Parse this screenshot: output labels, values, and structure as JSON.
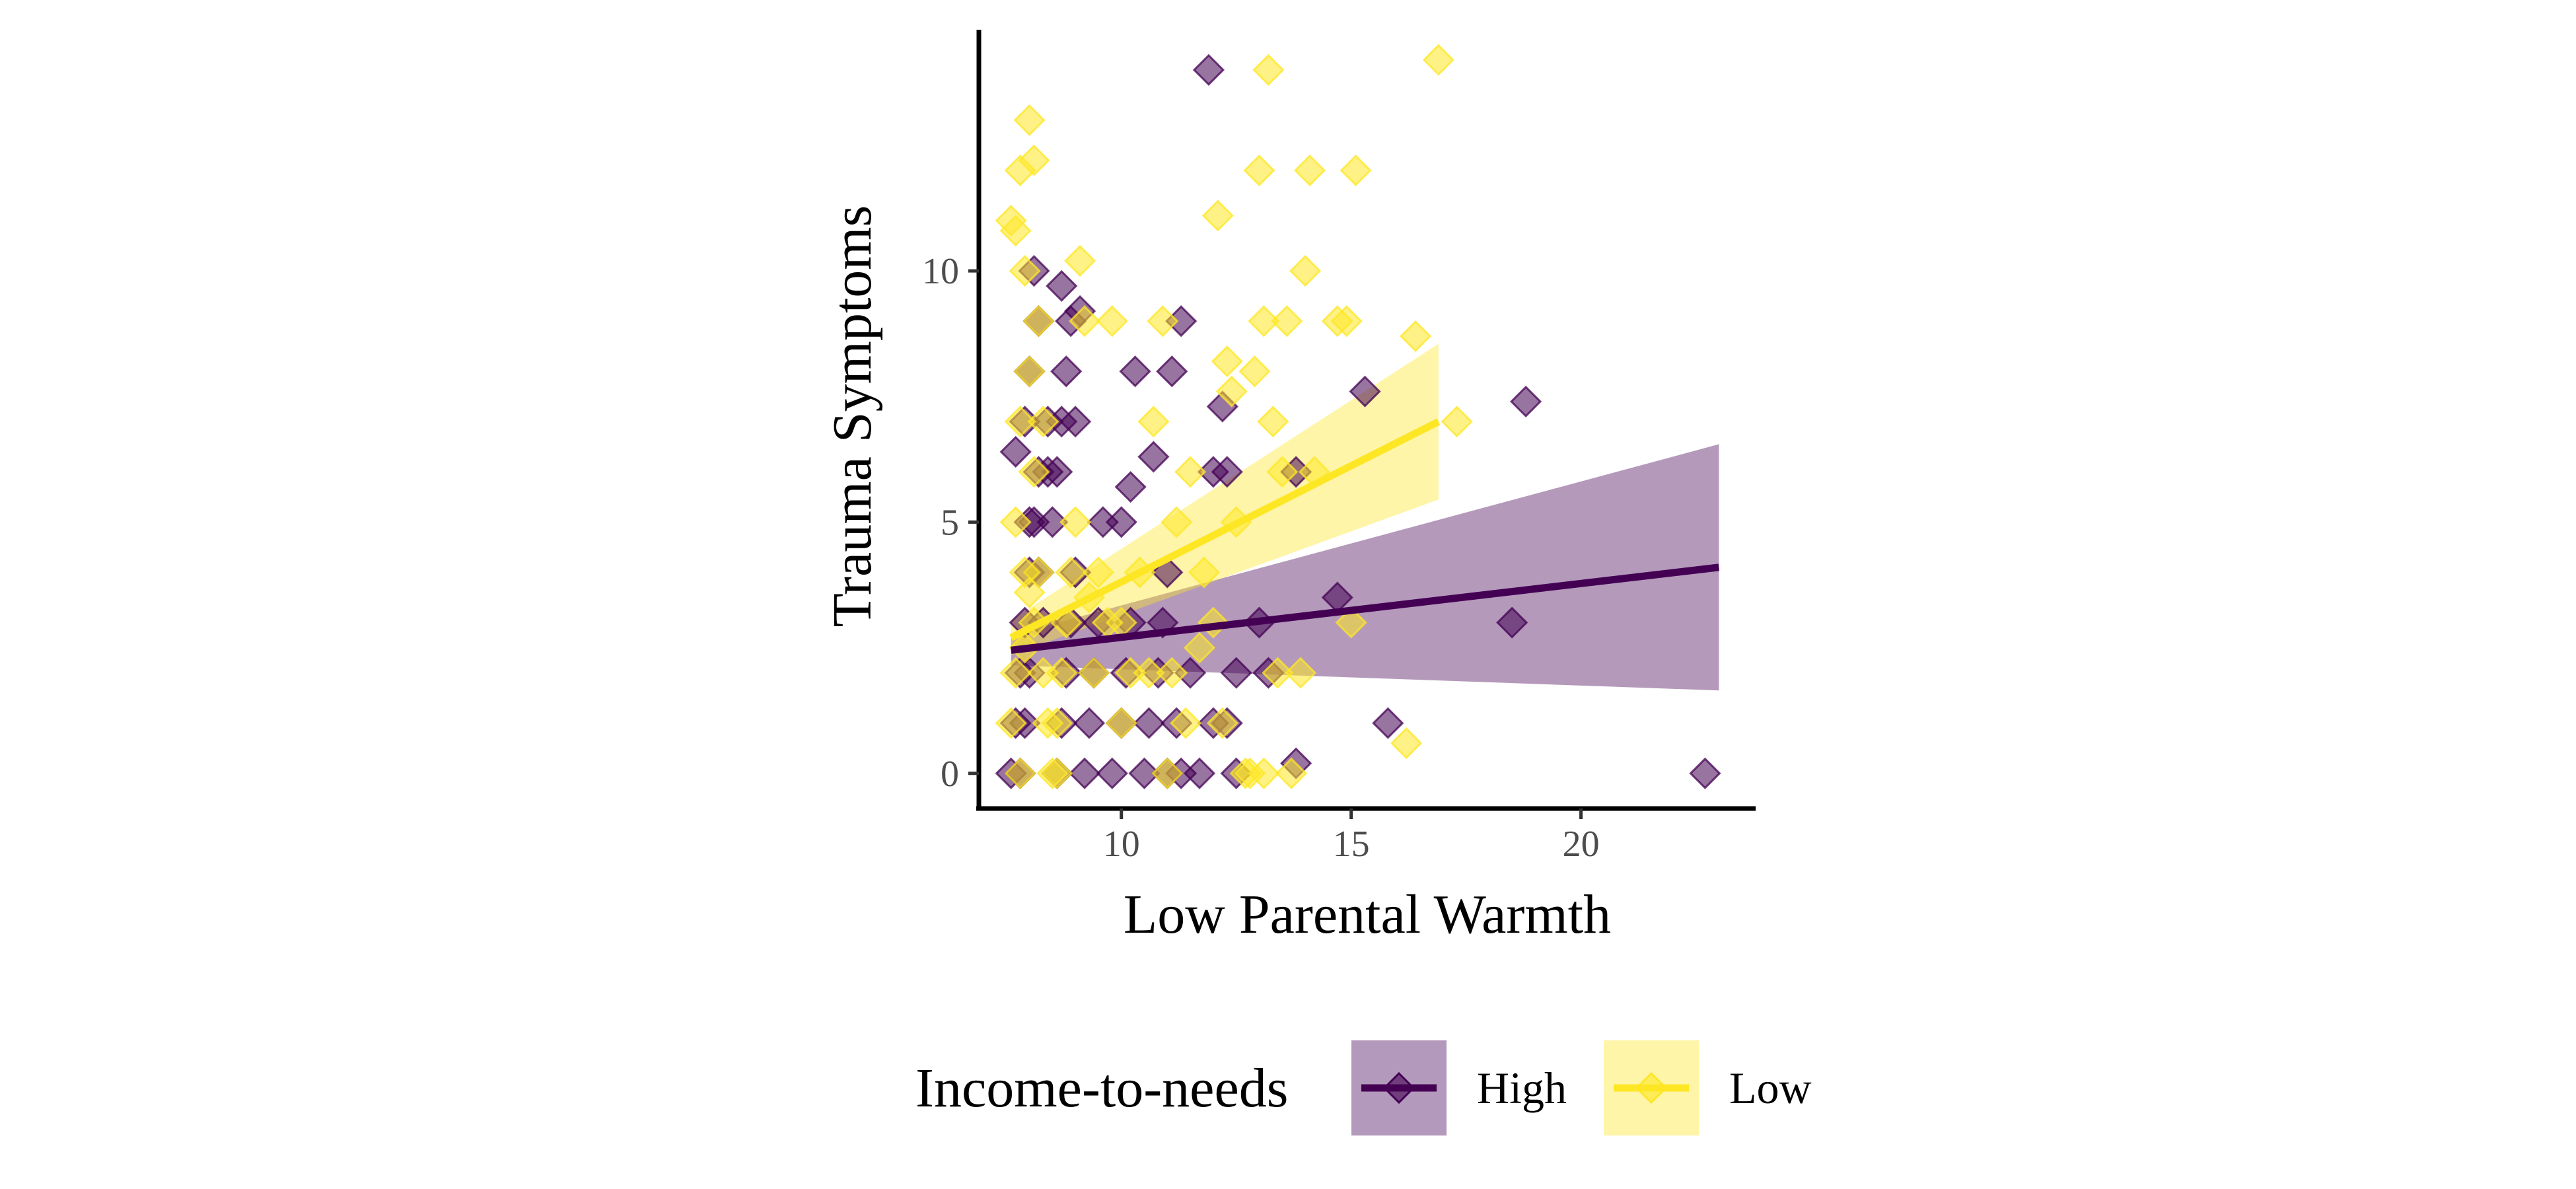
{
  "chart_data": {
    "type": "scatter",
    "title": "",
    "xlabel": "Low Parental Warmth",
    "ylabel": "Trauma Symptoms",
    "xlim": [
      6.9,
      23.8
    ],
    "ylim": [
      -0.7,
      14.8
    ],
    "xticks": [
      10,
      15,
      20
    ],
    "yticks": [
      0,
      5,
      10
    ],
    "grid": false,
    "legend": {
      "title": "Income-to-needs",
      "position": "bottom",
      "entries": [
        "High",
        "Low"
      ]
    },
    "series": [
      {
        "name": "High",
        "color": "#440154",
        "band_color": "#b399bb",
        "marker": "diamond",
        "fit": {
          "x": [
            7.6,
            23.0
          ],
          "y": [
            2.45,
            4.1
          ],
          "lower": [
            2.15,
            1.65
          ],
          "upper": [
            2.75,
            6.55
          ]
        },
        "points": [
          [
            7.6,
            0
          ],
          [
            7.7,
            1
          ],
          [
            7.8,
            2
          ],
          [
            7.9,
            3
          ],
          [
            8.0,
            4
          ],
          [
            8.1,
            5
          ],
          [
            8.2,
            6
          ],
          [
            7.8,
            0
          ],
          [
            7.9,
            1
          ],
          [
            8.0,
            2
          ],
          [
            8.3,
            3
          ],
          [
            8.4,
            7
          ],
          [
            8.0,
            8
          ],
          [
            8.2,
            9
          ],
          [
            8.1,
            10
          ],
          [
            8.6,
            0
          ],
          [
            8.7,
            1
          ],
          [
            8.8,
            2
          ],
          [
            8.9,
            3
          ],
          [
            9.0,
            4
          ],
          [
            8.5,
            5
          ],
          [
            8.6,
            6
          ],
          [
            8.7,
            7
          ],
          [
            8.8,
            8
          ],
          [
            8.9,
            9
          ],
          [
            9.2,
            0
          ],
          [
            9.3,
            1
          ],
          [
            9.4,
            2
          ],
          [
            9.5,
            3
          ],
          [
            9.6,
            5
          ],
          [
            9.8,
            0
          ],
          [
            10.0,
            1
          ],
          [
            10.1,
            2
          ],
          [
            10.2,
            3
          ],
          [
            10.0,
            5
          ],
          [
            10.3,
            8
          ],
          [
            10.5,
            0
          ],
          [
            10.6,
            1
          ],
          [
            10.8,
            2
          ],
          [
            10.9,
            3
          ],
          [
            10.7,
            6.3
          ],
          [
            11.0,
            4
          ],
          [
            11.0,
            0
          ],
          [
            11.2,
            1
          ],
          [
            11.3,
            0
          ],
          [
            11.1,
            8
          ],
          [
            11.5,
            2
          ],
          [
            11.7,
            0
          ],
          [
            12.0,
            1
          ],
          [
            12.0,
            6
          ],
          [
            12.2,
            7.3
          ],
          [
            12.3,
            1
          ],
          [
            12.5,
            2
          ],
          [
            12.5,
            0
          ],
          [
            13.0,
            3
          ],
          [
            13.2,
            2
          ],
          [
            13.8,
            0.2
          ],
          [
            13.8,
            6
          ],
          [
            14.7,
            3.5
          ],
          [
            15.3,
            7.6
          ],
          [
            15.8,
            1
          ],
          [
            18.5,
            3
          ],
          [
            18.8,
            7.4
          ],
          [
            22.7,
            0
          ],
          [
            11.9,
            14
          ],
          [
            7.7,
            6.4
          ],
          [
            8.0,
            5
          ],
          [
            8.2,
            4
          ],
          [
            7.9,
            7
          ],
          [
            8.4,
            6
          ],
          [
            9.0,
            7
          ],
          [
            8.7,
            9.7
          ],
          [
            9.1,
            9.2
          ],
          [
            10.2,
            5.7
          ],
          [
            11.3,
            9.0
          ],
          [
            12.3,
            6.0
          ]
        ]
      },
      {
        "name": "Low",
        "color": "#fde725",
        "band_color": "#fef5a8",
        "marker": "diamond",
        "fit": {
          "x": [
            7.6,
            16.9
          ],
          "y": [
            2.7,
            7.0
          ],
          "lower": [
            2.35,
            5.45
          ],
          "upper": [
            3.05,
            8.55
          ]
        },
        "points": [
          [
            7.6,
            11
          ],
          [
            7.8,
            12
          ],
          [
            8.0,
            13
          ],
          [
            8.1,
            12.2
          ],
          [
            7.7,
            10.8
          ],
          [
            7.9,
            10
          ],
          [
            8.2,
            9
          ],
          [
            8.0,
            8
          ],
          [
            7.8,
            7
          ],
          [
            8.1,
            6
          ],
          [
            7.7,
            5
          ],
          [
            7.9,
            4
          ],
          [
            8.1,
            3
          ],
          [
            8.3,
            2
          ],
          [
            7.6,
            1
          ],
          [
            7.8,
            0
          ],
          [
            8.5,
            0
          ],
          [
            8.6,
            1
          ],
          [
            8.7,
            2
          ],
          [
            8.8,
            3
          ],
          [
            8.9,
            4
          ],
          [
            9.0,
            5
          ],
          [
            9.1,
            10.2
          ],
          [
            9.2,
            9
          ],
          [
            9.4,
            2
          ],
          [
            9.7,
            3
          ],
          [
            9.8,
            9
          ],
          [
            10.0,
            1
          ],
          [
            10.2,
            2
          ],
          [
            10.4,
            4
          ],
          [
            10.7,
            7
          ],
          [
            10.9,
            9
          ],
          [
            11.0,
            0
          ],
          [
            11.2,
            5
          ],
          [
            11.4,
            1
          ],
          [
            11.5,
            6
          ],
          [
            11.8,
            4
          ],
          [
            12.0,
            3
          ],
          [
            12.1,
            11.1
          ],
          [
            12.3,
            8.2
          ],
          [
            12.4,
            7.6
          ],
          [
            12.7,
            0
          ],
          [
            12.9,
            8.0
          ],
          [
            13.0,
            12
          ],
          [
            13.1,
            9
          ],
          [
            13.2,
            14
          ],
          [
            13.3,
            7
          ],
          [
            13.6,
            9
          ],
          [
            13.5,
            6
          ],
          [
            13.9,
            2
          ],
          [
            14.0,
            10
          ],
          [
            14.1,
            12
          ],
          [
            14.2,
            6
          ],
          [
            14.7,
            9
          ],
          [
            14.9,
            9
          ],
          [
            15.0,
            3
          ],
          [
            15.1,
            12
          ],
          [
            16.2,
            0.6
          ],
          [
            16.4,
            8.7
          ],
          [
            16.9,
            14.2
          ],
          [
            17.3,
            7
          ],
          [
            12.8,
            0
          ],
          [
            13.1,
            0
          ],
          [
            13.7,
            0
          ],
          [
            7.7,
            2
          ],
          [
            7.9,
            2.5
          ],
          [
            8.2,
            4
          ],
          [
            8.4,
            1
          ],
          [
            8.6,
            0
          ],
          [
            9.3,
            3.5
          ],
          [
            9.5,
            4
          ],
          [
            10.0,
            3
          ],
          [
            10.6,
            2
          ],
          [
            11.1,
            2
          ],
          [
            11.7,
            2.5
          ],
          [
            12.2,
            1
          ],
          [
            12.5,
            5
          ],
          [
            13.4,
            2
          ],
          [
            8.0,
            3.6
          ],
          [
            8.3,
            7
          ]
        ]
      }
    ]
  }
}
